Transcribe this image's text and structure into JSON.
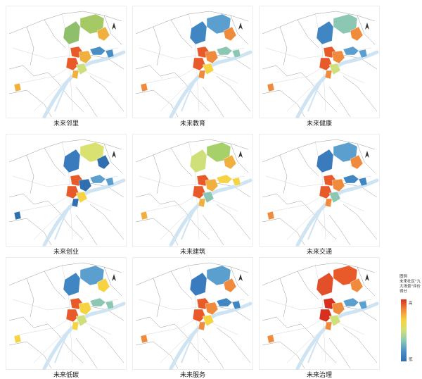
{
  "panels": [
    {
      "label": "未来邻里",
      "palette": [
        "#8fbf6a",
        "#a4c965",
        "#f0b040",
        "#e85a2a",
        "#cde07c",
        "#4a8fc4"
      ]
    },
    {
      "label": "未来教育",
      "palette": [
        "#3f86c2",
        "#5a9fce",
        "#f08a3c",
        "#e85a2a",
        "#f5d342",
        "#8cc7b3"
      ]
    },
    {
      "label": "未来健康",
      "palette": [
        "#3f86c2",
        "#8cc7b3",
        "#f08a3c",
        "#e85a2a",
        "#cfe07a",
        "#5a9fce"
      ]
    },
    {
      "label": "未来创业",
      "palette": [
        "#3a7bbd",
        "#d9e270",
        "#2f6fb0",
        "#e85a2a",
        "#f5d342",
        "#5a9fce"
      ]
    },
    {
      "label": "未来建筑",
      "palette": [
        "#cfe07a",
        "#a6d06a",
        "#f0b040",
        "#e85a2a",
        "#8cc7b3",
        "#f5d342"
      ]
    },
    {
      "label": "未来交通",
      "palette": [
        "#3a7bbd",
        "#5a9fce",
        "#f08a3c",
        "#e85a2a",
        "#8cc7b3",
        "#3f86c2"
      ]
    },
    {
      "label": "未来低碳",
      "palette": [
        "#3f86c2",
        "#5a9fce",
        "#f5d342",
        "#e85a2a",
        "#cfe07a",
        "#8cc7b3"
      ]
    },
    {
      "label": "未来服务",
      "palette": [
        "#3a7bbd",
        "#5a9fce",
        "#f08a3c",
        "#e85a2a",
        "#f5d342",
        "#3f86c2"
      ]
    },
    {
      "label": "未来治理",
      "palette": [
        "#e2502a",
        "#e85a2a",
        "#f08a3c",
        "#d7301f",
        "#cfe07a",
        "#5a9fce"
      ]
    }
  ],
  "legend": {
    "title": "图例",
    "subtitle": "未来社区\"九大场景\"评价得分",
    "high": "高",
    "low": "低"
  },
  "colors": {
    "river": "#cfe4f2",
    "road": "#d6d6d6",
    "border": "#9a9a9a"
  }
}
